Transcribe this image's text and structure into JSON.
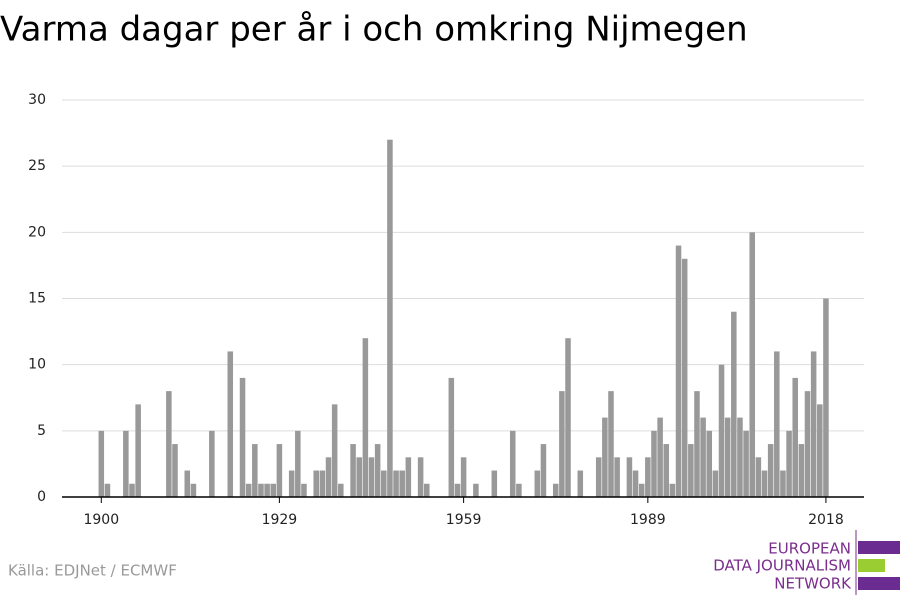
{
  "chart_data": {
    "type": "bar",
    "title": "Varma dagar per år i och omkring Nijmegen",
    "source": "Källa: EDJNet / ECMWF",
    "logo": [
      "EUROPEAN",
      "DATA JOURNALISM",
      "NETWORK"
    ],
    "color": "#999999",
    "grid": true,
    "x": [
      1900,
      1901,
      1902,
      1903,
      1904,
      1905,
      1906,
      1907,
      1908,
      1909,
      1910,
      1911,
      1912,
      1913,
      1914,
      1915,
      1916,
      1917,
      1918,
      1919,
      1920,
      1921,
      1922,
      1923,
      1924,
      1925,
      1926,
      1927,
      1928,
      1929,
      1930,
      1931,
      1932,
      1933,
      1934,
      1935,
      1936,
      1937,
      1938,
      1939,
      1940,
      1941,
      1942,
      1943,
      1944,
      1945,
      1946,
      1947,
      1948,
      1949,
      1950,
      1951,
      1952,
      1953,
      1954,
      1955,
      1956,
      1957,
      1958,
      1959,
      1960,
      1961,
      1962,
      1963,
      1964,
      1965,
      1966,
      1967,
      1968,
      1969,
      1970,
      1971,
      1972,
      1973,
      1974,
      1975,
      1976,
      1977,
      1978,
      1979,
      1980,
      1981,
      1982,
      1983,
      1984,
      1985,
      1986,
      1987,
      1988,
      1989,
      1990,
      1991,
      1992,
      1993,
      1994,
      1995,
      1996,
      1997,
      1998,
      1999,
      2000,
      2001,
      2002,
      2003,
      2004,
      2005,
      2006,
      2007,
      2008,
      2009,
      2010,
      2011,
      2012,
      2013,
      2014,
      2015,
      2016,
      2017,
      2018
    ],
    "values": [
      5,
      1,
      0,
      0,
      5,
      1,
      7,
      0,
      0,
      0,
      0,
      8,
      4,
      0,
      2,
      1,
      0,
      0,
      5,
      0,
      0,
      11,
      0,
      9,
      1,
      4,
      1,
      1,
      1,
      4,
      0,
      2,
      5,
      1,
      0,
      2,
      2,
      3,
      7,
      1,
      0,
      4,
      3,
      12,
      3,
      4,
      2,
      27,
      2,
      2,
      3,
      0,
      3,
      1,
      0,
      0,
      0,
      9,
      1,
      3,
      0,
      1,
      0,
      0,
      2,
      0,
      0,
      5,
      1,
      0,
      0,
      2,
      4,
      0,
      1,
      8,
      12,
      0,
      2,
      0,
      0,
      3,
      6,
      8,
      3,
      0,
      3,
      2,
      1,
      3,
      5,
      6,
      4,
      1,
      19,
      18,
      4,
      8,
      6,
      5,
      2,
      10,
      6,
      14,
      6,
      5,
      20,
      3,
      2,
      4,
      11,
      2,
      5,
      9,
      4,
      8,
      11,
      7,
      15
    ],
    "xlim": [
      1893.6,
      2024.2
    ],
    "xticks": [
      1900,
      1929,
      1959,
      1989,
      2018
    ],
    "ylim": [
      0,
      30
    ],
    "yticks": [
      0,
      5,
      10,
      15,
      20,
      25,
      30
    ]
  }
}
